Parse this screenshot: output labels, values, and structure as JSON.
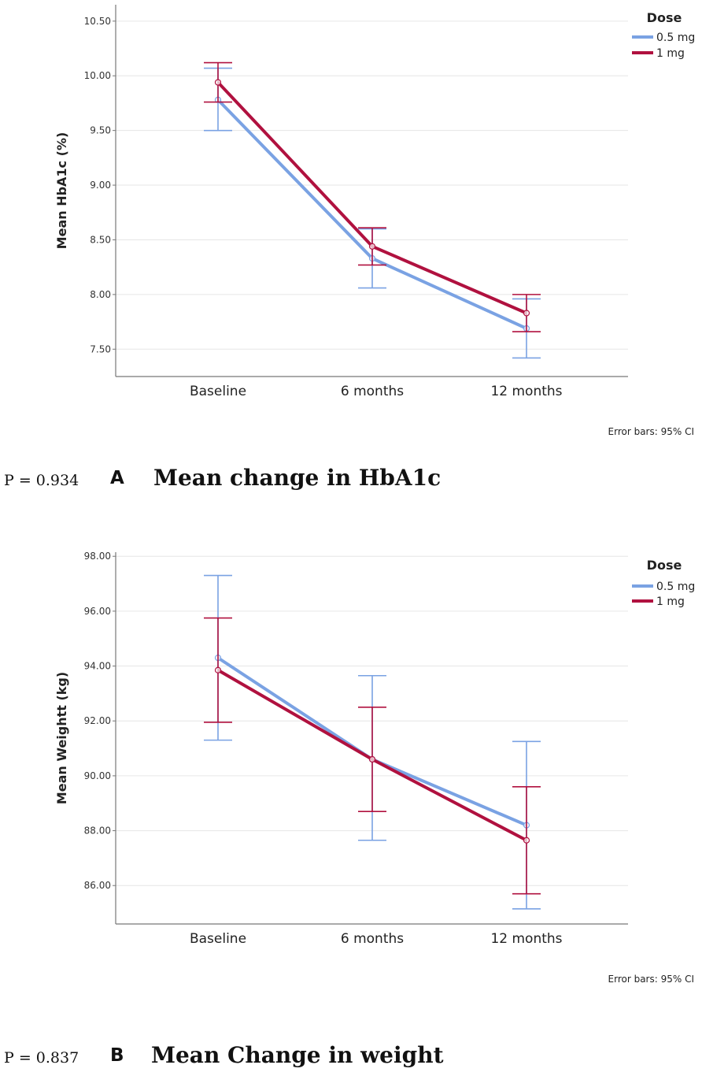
{
  "colors": {
    "dose_05": "#7AA2E3",
    "dose_1": "#B0113F",
    "grid": "#e6e6e6",
    "axis": "#777777"
  },
  "chart_data": [
    {
      "type": "line",
      "title": "Mean change in HbA1c",
      "panel_letter": "A",
      "p_value": "P = 0.934",
      "xlabel": "",
      "ylabel": "Mean HbA1c (%)",
      "categories": [
        "Baseline",
        "6 months",
        "12 months"
      ],
      "ylim": [
        7.25,
        10.65
      ],
      "yticks": [
        7.5,
        8.0,
        8.5,
        9.0,
        9.5,
        10.0,
        10.5
      ],
      "tick_labels": [
        "7.50",
        "8.00",
        "8.50",
        "9.00",
        "9.50",
        "10.00",
        "10.50"
      ],
      "legend_title": "Dose",
      "legend_position": "top-right",
      "error_note": "Error bars: 95% CI",
      "grid": true,
      "series": [
        {
          "name": "0.5 mg",
          "values": [
            9.78,
            8.33,
            7.69
          ],
          "lower": [
            9.5,
            8.06,
            7.42
          ],
          "upper": [
            10.07,
            8.6,
            7.96
          ]
        },
        {
          "name": "1 mg",
          "values": [
            9.94,
            8.44,
            7.83
          ],
          "lower": [
            9.76,
            8.27,
            7.66
          ],
          "upper": [
            10.12,
            8.61,
            8.0
          ]
        }
      ]
    },
    {
      "type": "line",
      "title": "Mean Change in weight",
      "panel_letter": "B",
      "p_value": "P = 0.837",
      "xlabel": "",
      "ylabel": "Mean Weightt (kg)",
      "categories": [
        "Baseline",
        "6 months",
        "12 months"
      ],
      "ylim": [
        84.6,
        98.15
      ],
      "yticks": [
        86,
        88,
        90,
        92,
        94,
        96,
        98
      ],
      "tick_labels": [
        "86.00",
        "88.00",
        "90.00",
        "92.00",
        "94.00",
        "96.00",
        "98.00"
      ],
      "legend_title": "Dose",
      "legend_position": "top-right",
      "error_note": "Error bars: 95% CI",
      "grid": true,
      "series": [
        {
          "name": "0.5 mg",
          "values": [
            94.3,
            90.6,
            88.2
          ],
          "lower": [
            91.3,
            87.65,
            85.15
          ],
          "upper": [
            97.3,
            93.65,
            91.25
          ]
        },
        {
          "name": "1 mg",
          "values": [
            93.85,
            90.6,
            87.65
          ],
          "lower": [
            91.95,
            88.7,
            85.7
          ],
          "upper": [
            95.75,
            92.5,
            89.6
          ]
        }
      ]
    }
  ]
}
